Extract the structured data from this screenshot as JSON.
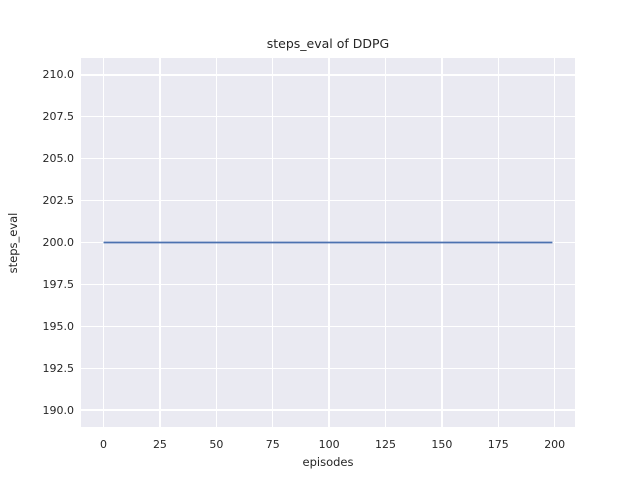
{
  "colors": {
    "figure_background": "#ffffff",
    "plot_background": "#eaeaf2",
    "grid": "#ffffff",
    "text": "#262626",
    "line": "#4c72b0"
  },
  "chart_data": {
    "type": "line",
    "title": "steps_eval of DDPG",
    "xlabel": "episodes",
    "ylabel": "steps_eval",
    "xlim": [
      -10,
      209
    ],
    "ylim": [
      189,
      211
    ],
    "grid": true,
    "legend": false,
    "x_ticks": [
      0,
      25,
      50,
      75,
      100,
      125,
      150,
      175,
      200
    ],
    "x_tick_labels": [
      "0",
      "25",
      "50",
      "75",
      "100",
      "125",
      "150",
      "175",
      "200"
    ],
    "y_ticks": [
      190.0,
      192.5,
      195.0,
      197.5,
      200.0,
      202.5,
      205.0,
      207.5,
      210.0
    ],
    "y_tick_labels": [
      "190.0",
      "192.5",
      "195.0",
      "197.5",
      "200.0",
      "202.5",
      "205.0",
      "207.5",
      "210.0"
    ],
    "series": [
      {
        "name": "steps_eval",
        "color": "#4c72b0",
        "line_width": 1.8,
        "description": "constant value 200 for every episode from 0 to 199",
        "x": [
          0,
          199
        ],
        "y": [
          200,
          200
        ]
      }
    ]
  }
}
